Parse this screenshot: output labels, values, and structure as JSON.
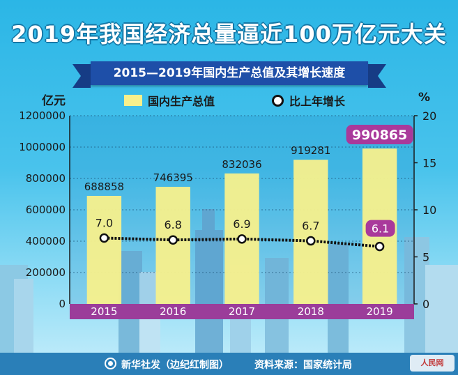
{
  "page": {
    "title": "2019年我国经济总量逼近100万亿元大关",
    "subtitle": "2015—2019年国内生产总值及其增长速度",
    "footer_left": "新华社发（边纪红制图）",
    "footer_right": "资料来源：国家统计局",
    "watermark": "人民网"
  },
  "colors": {
    "sky": "#2bb6e6",
    "bar": "#f7f08c",
    "axis_band": "#9b3d9a",
    "highlight": "#a9399b",
    "ribbon": "#1e4fa8",
    "footer": "#2a7fb8",
    "line": "#111111"
  },
  "chart_data": {
    "type": "bar+line",
    "title": "2015—2019年国内生产总值及其增长速度",
    "categories": [
      "2015",
      "2016",
      "2017",
      "2018",
      "2019"
    ],
    "series": [
      {
        "name": "国内生产总值",
        "type": "bar",
        "axis": "left",
        "values": [
          688858,
          746395,
          832036,
          919281,
          990865
        ],
        "labels": [
          "688858",
          "746395",
          "832036",
          "919281",
          "990865"
        ]
      },
      {
        "name": "比上年增长",
        "type": "line",
        "axis": "right",
        "values": [
          7.0,
          6.8,
          6.9,
          6.7,
          6.1
        ],
        "labels": [
          "7.0",
          "6.8",
          "6.9",
          "6.7",
          "6.1"
        ]
      }
    ],
    "ylabel_left": "亿元",
    "ylabel_right": "%",
    "ylim_left": [
      0,
      1200000
    ],
    "ylim_right": [
      0,
      20
    ],
    "yticks_left": [
      0,
      200000,
      400000,
      600000,
      800000,
      1000000,
      1200000
    ],
    "yticks_left_labels": [
      "0",
      "200000",
      "400000",
      "600000",
      "800000",
      "1000000",
      "1200000"
    ],
    "yticks_right": [
      0,
      5,
      10,
      15,
      20
    ],
    "yticks_right_labels": [
      "0",
      "5",
      "10",
      "15",
      "20"
    ],
    "highlight_index": 4,
    "grid": true,
    "legend_position": "top"
  }
}
